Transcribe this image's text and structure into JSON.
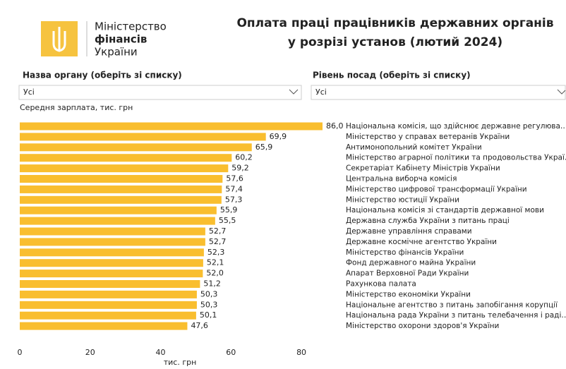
{
  "header": {
    "logo_lines": [
      "Міністерство",
      "фінансів",
      "України"
    ],
    "title_lines": [
      "Оплата праці працівників державних органів",
      "у розрізі установ (лютий 2024)"
    ]
  },
  "filters": [
    {
      "label": "Назва органу (оберіть зі списку)",
      "value": "Усі"
    },
    {
      "label": "Рівень посад (оберіть зі списку)",
      "value": "Усі"
    }
  ],
  "chart_data": {
    "type": "bar",
    "orientation": "horizontal",
    "title": "Середня зарплата, тис. грн",
    "x_label": "тис. грн",
    "color": "#F9BE2F",
    "categories": [
      "Національна комісія, що здійснює державне регулюва…",
      "Міністерство у справах ветеранів України",
      "Антимонопольний комітет України",
      "Міністерство аграрної політики та продовольства Украї…",
      "Секретаріат Кабінету Міністрів України",
      "Центральна виборча комісія",
      "Міністерство цифрової трансформації України",
      "Міністерство юстиції України",
      "Національна комісія зі стандартів державної мови",
      "Державна служба України з питань праці",
      "Державне управління справами",
      "Державне космічне агентство України",
      "Міністерство фінансів України",
      "Фонд державного майна України",
      "Апарат Верховної Ради України",
      "Рахункова палата",
      "Міністерство економіки України",
      "Національне агентство з питань запобігання корупції",
      "Національна рада України з питань телебачення і раді…",
      "Міністерство охорони здоров'я України"
    ],
    "values": [
      86.0,
      69.9,
      65.9,
      60.2,
      59.2,
      57.6,
      57.4,
      57.3,
      55.9,
      55.5,
      52.7,
      52.7,
      52.3,
      52.1,
      52.0,
      51.2,
      50.3,
      50.3,
      50.1,
      47.6
    ],
    "value_labels": [
      "86,0",
      "69,9",
      "65,9",
      "60,2",
      "59,2",
      "57,6",
      "57,4",
      "57,3",
      "55,9",
      "55,5",
      "52,7",
      "52,7",
      "52,3",
      "52,1",
      "52,0",
      "51,2",
      "50,3",
      "50,3",
      "50,1",
      "47,6"
    ],
    "xlim": [
      0,
      86
    ],
    "xticks": [
      0,
      20,
      40,
      60,
      80
    ],
    "grid": false
  }
}
